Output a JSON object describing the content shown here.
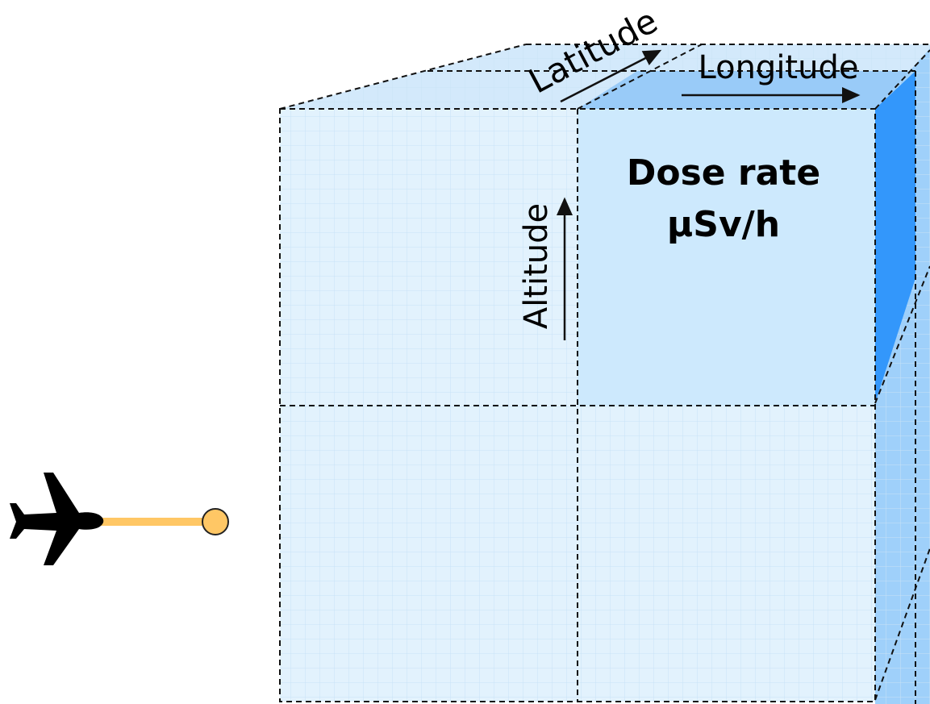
{
  "labels": {
    "latitude": "Latitude",
    "longitude": "Longitude",
    "altitude": "Altitude",
    "dose_rate": "Dose rate",
    "unit": "μSv/h"
  }
}
